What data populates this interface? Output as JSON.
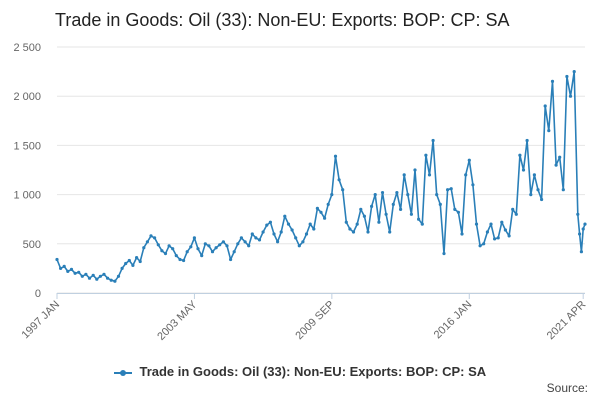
{
  "chart_data": {
    "type": "line",
    "title": "Trade in Goods: Oil (33): Non-EU: Exports: BOP: CP: SA",
    "xlabel": "",
    "ylabel": "",
    "x_tick_labels": [
      "1997 JAN",
      "2003 MAY",
      "2009 SEP",
      "2016 JAN",
      "2021 APR"
    ],
    "x_tick_dates": [
      "1997-01",
      "2003-05",
      "2009-09",
      "2016-01",
      "2021-04"
    ],
    "x_range": [
      "1997-01",
      "2021-05"
    ],
    "y_tick_labels": [
      "0",
      "500",
      "1 000",
      "1 500",
      "2 000",
      "2 500"
    ],
    "ylim": [
      0,
      2500
    ],
    "grid": "horizontal",
    "legend_position": "bottom",
    "series": [
      {
        "name": "Trade in Goods: Oil (33): Non-EU: Exports: BOP: CP: SA",
        "color": "#2a7fb8",
        "points": [
          [
            "1997-01",
            340
          ],
          [
            "1997-03",
            250
          ],
          [
            "1997-05",
            270
          ],
          [
            "1997-07",
            220
          ],
          [
            "1997-09",
            240
          ],
          [
            "1997-11",
            200
          ],
          [
            "1998-01",
            210
          ],
          [
            "1998-03",
            170
          ],
          [
            "1998-05",
            190
          ],
          [
            "1998-07",
            150
          ],
          [
            "1998-09",
            180
          ],
          [
            "1998-11",
            140
          ],
          [
            "1999-01",
            170
          ],
          [
            "1999-03",
            190
          ],
          [
            "1999-05",
            150
          ],
          [
            "1999-07",
            130
          ],
          [
            "1999-09",
            120
          ],
          [
            "1999-11",
            170
          ],
          [
            "2000-01",
            250
          ],
          [
            "2000-03",
            300
          ],
          [
            "2000-05",
            330
          ],
          [
            "2000-07",
            280
          ],
          [
            "2000-09",
            360
          ],
          [
            "2000-11",
            320
          ],
          [
            "2001-01",
            460
          ],
          [
            "2001-03",
            520
          ],
          [
            "2001-05",
            580
          ],
          [
            "2001-07",
            560
          ],
          [
            "2001-09",
            490
          ],
          [
            "2001-11",
            430
          ],
          [
            "2002-01",
            400
          ],
          [
            "2002-03",
            480
          ],
          [
            "2002-05",
            450
          ],
          [
            "2002-07",
            380
          ],
          [
            "2002-09",
            340
          ],
          [
            "2002-11",
            330
          ],
          [
            "2003-01",
            420
          ],
          [
            "2003-03",
            470
          ],
          [
            "2003-05",
            560
          ],
          [
            "2003-07",
            450
          ],
          [
            "2003-09",
            380
          ],
          [
            "2003-11",
            500
          ],
          [
            "2004-01",
            480
          ],
          [
            "2004-03",
            420
          ],
          [
            "2004-05",
            460
          ],
          [
            "2004-07",
            490
          ],
          [
            "2004-09",
            520
          ],
          [
            "2004-11",
            480
          ],
          [
            "2005-01",
            340
          ],
          [
            "2005-03",
            420
          ],
          [
            "2005-05",
            500
          ],
          [
            "2005-07",
            560
          ],
          [
            "2005-09",
            520
          ],
          [
            "2005-11",
            480
          ],
          [
            "2006-01",
            600
          ],
          [
            "2006-03",
            560
          ],
          [
            "2006-05",
            540
          ],
          [
            "2006-07",
            620
          ],
          [
            "2006-09",
            690
          ],
          [
            "2006-11",
            720
          ],
          [
            "2007-01",
            600
          ],
          [
            "2007-03",
            520
          ],
          [
            "2007-05",
            620
          ],
          [
            "2007-07",
            780
          ],
          [
            "2007-09",
            700
          ],
          [
            "2007-11",
            640
          ],
          [
            "2008-01",
            560
          ],
          [
            "2008-03",
            480
          ],
          [
            "2008-05",
            520
          ],
          [
            "2008-07",
            600
          ],
          [
            "2008-09",
            700
          ],
          [
            "2008-11",
            650
          ],
          [
            "2009-01",
            860
          ],
          [
            "2009-03",
            820
          ],
          [
            "2009-05",
            760
          ],
          [
            "2009-07",
            900
          ],
          [
            "2009-09",
            1000
          ],
          [
            "2009-11",
            1390
          ],
          [
            "2010-01",
            1150
          ],
          [
            "2010-03",
            1050
          ],
          [
            "2010-05",
            720
          ],
          [
            "2010-07",
            650
          ],
          [
            "2010-09",
            620
          ],
          [
            "2010-11",
            700
          ],
          [
            "2011-01",
            850
          ],
          [
            "2011-03",
            780
          ],
          [
            "2011-05",
            620
          ],
          [
            "2011-07",
            880
          ],
          [
            "2011-09",
            1000
          ],
          [
            "2011-11",
            720
          ],
          [
            "2012-01",
            1020
          ],
          [
            "2012-03",
            800
          ],
          [
            "2012-05",
            620
          ],
          [
            "2012-07",
            900
          ],
          [
            "2012-09",
            1020
          ],
          [
            "2012-11",
            850
          ],
          [
            "2013-01",
            1200
          ],
          [
            "2013-03",
            1000
          ],
          [
            "2013-05",
            800
          ],
          [
            "2013-07",
            1250
          ],
          [
            "2013-09",
            750
          ],
          [
            "2013-11",
            700
          ],
          [
            "2014-01",
            1400
          ],
          [
            "2014-03",
            1200
          ],
          [
            "2014-05",
            1550
          ],
          [
            "2014-07",
            1000
          ],
          [
            "2014-09",
            900
          ],
          [
            "2014-11",
            400
          ],
          [
            "2015-01",
            1050
          ],
          [
            "2015-03",
            1060
          ],
          [
            "2015-05",
            850
          ],
          [
            "2015-07",
            820
          ],
          [
            "2015-09",
            600
          ],
          [
            "2015-11",
            1200
          ],
          [
            "2016-01",
            1350
          ],
          [
            "2016-03",
            1100
          ],
          [
            "2016-05",
            700
          ],
          [
            "2016-07",
            480
          ],
          [
            "2016-09",
            500
          ],
          [
            "2016-11",
            620
          ],
          [
            "2017-01",
            700
          ],
          [
            "2017-03",
            550
          ],
          [
            "2017-05",
            560
          ],
          [
            "2017-07",
            720
          ],
          [
            "2017-09",
            640
          ],
          [
            "2017-11",
            580
          ],
          [
            "2018-01",
            850
          ],
          [
            "2018-03",
            800
          ],
          [
            "2018-05",
            1400
          ],
          [
            "2018-07",
            1250
          ],
          [
            "2018-09",
            1550
          ],
          [
            "2018-11",
            1000
          ],
          [
            "2019-01",
            1200
          ],
          [
            "2019-03",
            1050
          ],
          [
            "2019-05",
            950
          ],
          [
            "2019-07",
            1900
          ],
          [
            "2019-09",
            1650
          ],
          [
            "2019-11",
            2150
          ],
          [
            "2020-01",
            1300
          ],
          [
            "2020-03",
            1380
          ],
          [
            "2020-05",
            1050
          ],
          [
            "2020-07",
            2200
          ],
          [
            "2020-09",
            2000
          ],
          [
            "2020-11",
            2250
          ],
          [
            "2021-01",
            800
          ],
          [
            "2021-02",
            600
          ],
          [
            "2021-03",
            420
          ],
          [
            "2021-04",
            650
          ],
          [
            "2021-05",
            700
          ]
        ]
      }
    ]
  },
  "legend_label": "Trade in Goods: Oil (33): Non-EU: Exports: BOP: CP: SA",
  "source_label": "Source:"
}
